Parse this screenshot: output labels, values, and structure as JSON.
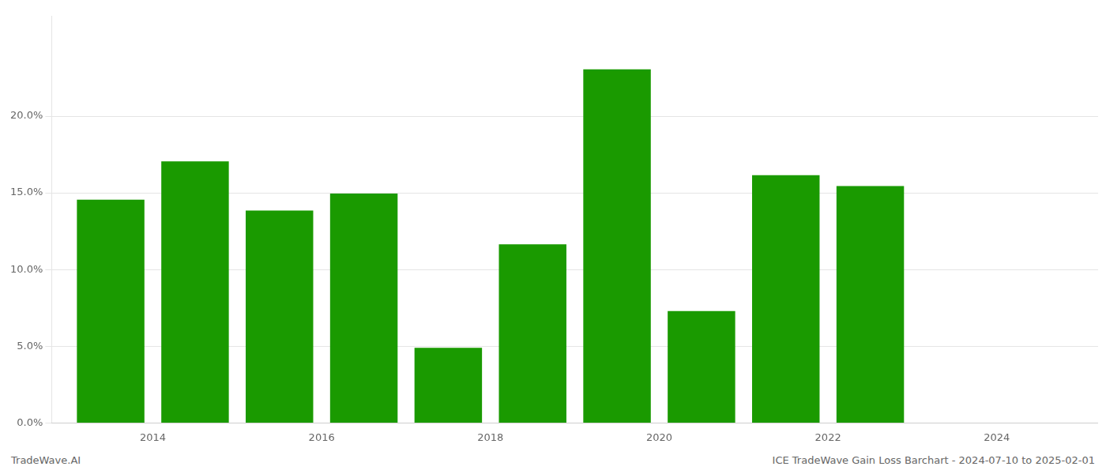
{
  "chart_data": {
    "type": "bar",
    "x": [
      2013.5,
      2014.5,
      2015.5,
      2016.5,
      2017.5,
      2018.5,
      2019.5,
      2020.5,
      2021.5,
      2022.5
    ],
    "values": [
      0.1455,
      0.1705,
      0.1385,
      0.1495,
      0.049,
      0.1165,
      0.2305,
      0.073,
      0.1615,
      0.1545
    ],
    "color": "#1a9a00",
    "xlim": [
      2012.8,
      2025.2
    ],
    "xticks": [
      2014,
      2016,
      2018,
      2020,
      2022,
      2024
    ],
    "ylim": [
      0,
      0.265
    ],
    "yticks": [
      {
        "value": 0.0,
        "label": "0.0%"
      },
      {
        "value": 0.05,
        "label": "5.0%"
      },
      {
        "value": 0.1,
        "label": "10.0%"
      },
      {
        "value": 0.15,
        "label": "15.0%"
      },
      {
        "value": 0.2,
        "label": "20.0%"
      }
    ],
    "grid": true,
    "annotations": [
      "TradeWave.AI",
      "ICE TradeWave Gain Loss Barchart - 2024-07-10 to 2025-02-01"
    ]
  }
}
